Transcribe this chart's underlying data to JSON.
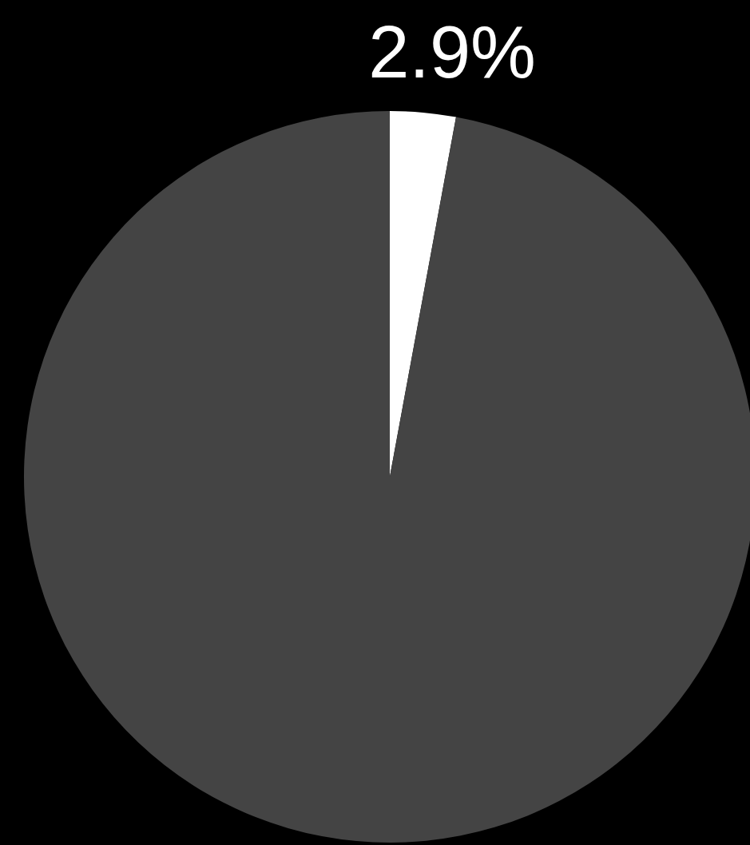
{
  "chart_data": {
    "type": "pie",
    "categories": [
      null,
      null
    ],
    "values": [
      2.9,
      97.1
    ],
    "colors": [
      "#ffffff",
      "#444444"
    ],
    "value_labels": [
      "2.9%",
      null
    ],
    "legend": false
  }
}
